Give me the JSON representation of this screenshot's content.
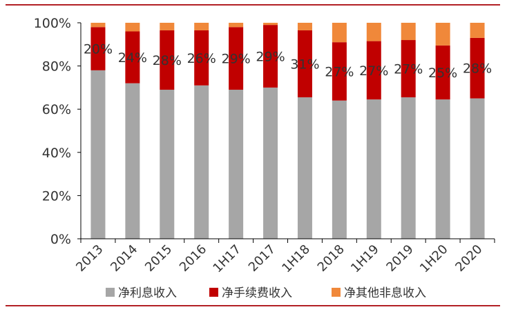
{
  "chart_data": {
    "type": "bar",
    "stacked": true,
    "categories": [
      "2013",
      "2014",
      "2015",
      "2016",
      "1H17",
      "2017",
      "1H18",
      "2018",
      "1H19",
      "2019",
      "1H20",
      "2020"
    ],
    "series": [
      {
        "name": "净利息收入",
        "color": "#a6a6a6",
        "values": [
          78,
          72,
          69,
          71,
          69,
          70,
          65.5,
          64,
          64.5,
          65.5,
          64.5,
          65
        ]
      },
      {
        "name": "净手续费收入",
        "color": "#c00000",
        "values": [
          20,
          24,
          27.5,
          25.5,
          29,
          29,
          31,
          27,
          27,
          26.5,
          25,
          28
        ]
      },
      {
        "name": "净其他非息收入",
        "color": "#f0883a",
        "values": [
          2,
          4,
          3.5,
          3.5,
          2,
          1,
          3.5,
          9,
          8.5,
          8,
          10.5,
          7
        ]
      }
    ],
    "data_labels": [
      "20%",
      "24%",
      "28%",
      "26%",
      "29%",
      "29%",
      "31%",
      "27%",
      "27%",
      "27%",
      "25%",
      "28%"
    ],
    "y_ticks": [
      "0%",
      "20%",
      "40%",
      "60%",
      "80%",
      "100%"
    ],
    "ylim": [
      0,
      100
    ],
    "grid": false,
    "legend_position": "bottom",
    "title": "",
    "xlabel": "",
    "ylabel": ""
  },
  "frame_color": "#b21f24"
}
